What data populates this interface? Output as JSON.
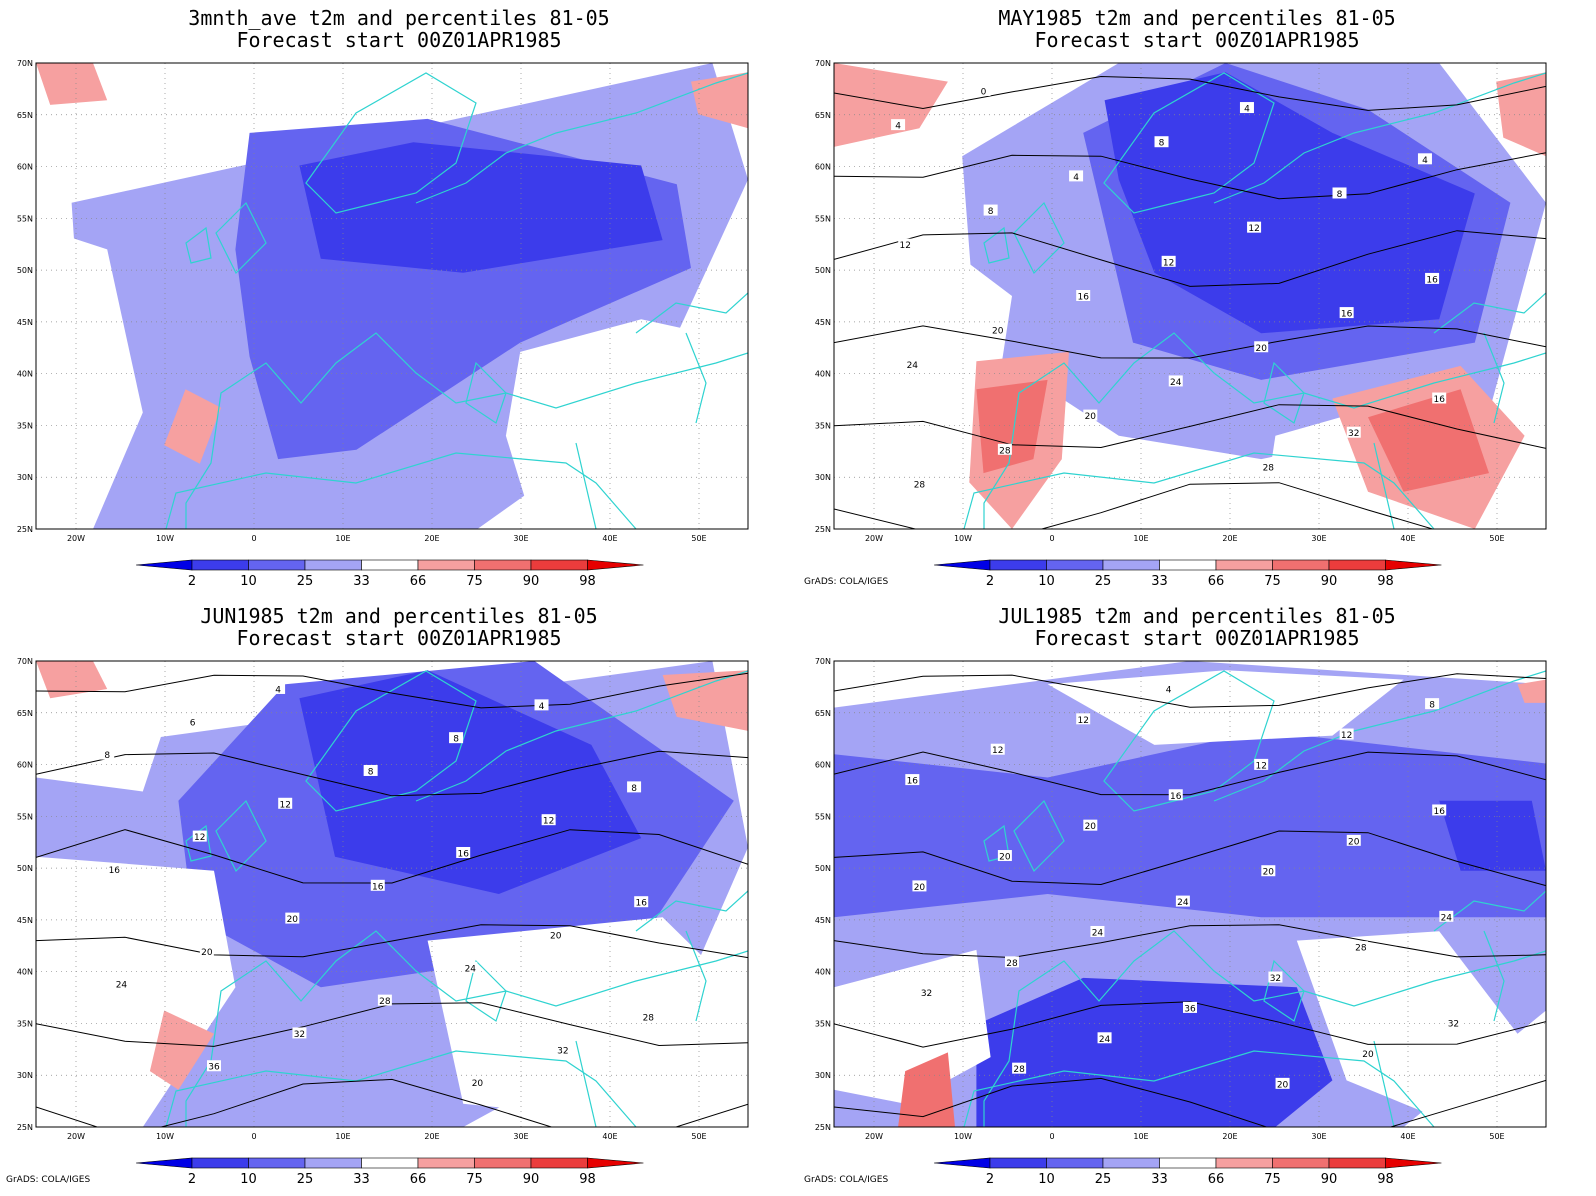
{
  "panels": [
    {
      "title_line1": "3mnth_ave t2m and percentiles 81-05",
      "title_line2": "Forecast start 00Z01APR1985",
      "credit": "",
      "contour_labels": [],
      "blobs": [
        {
          "c": "#a4a4f5",
          "pts": [
            [
              0.05,
              0.3
            ],
            [
              0.95,
              0.0
            ],
            [
              1.0,
              0.25
            ],
            [
              0.85,
              0.75
            ],
            [
              0.62,
              1.0
            ],
            [
              0.08,
              1.0
            ]
          ]
        },
        {
          "c": "#6464f0",
          "pts": [
            [
              0.28,
              0.4
            ],
            [
              0.3,
              0.15
            ],
            [
              0.55,
              0.12
            ],
            [
              0.9,
              0.26
            ],
            [
              0.92,
              0.44
            ],
            [
              0.68,
              0.6
            ],
            [
              0.45,
              0.83
            ],
            [
              0.34,
              0.85
            ],
            [
              0.3,
              0.63
            ]
          ]
        },
        {
          "c": "#3c3ceb",
          "pts": [
            [
              0.37,
              0.22
            ],
            [
              0.53,
              0.17
            ],
            [
              0.85,
              0.22
            ],
            [
              0.88,
              0.38
            ],
            [
              0.6,
              0.45
            ],
            [
              0.4,
              0.42
            ]
          ]
        },
        {
          "c": "#ffffff",
          "pts": [
            [
              0.0,
              0.35
            ],
            [
              0.1,
              0.4
            ],
            [
              0.15,
              0.75
            ],
            [
              0.08,
              1.0
            ],
            [
              0.0,
              1.0
            ]
          ]
        },
        {
          "c": "#ffffff",
          "pts": [
            [
              0.13,
              0.0
            ],
            [
              0.22,
              0.0
            ],
            [
              0.2,
              0.25
            ],
            [
              0.12,
              0.25
            ]
          ]
        },
        {
          "c": "#ffffff",
          "pts": [
            [
              0.68,
              0.62
            ],
            [
              0.85,
              0.55
            ],
            [
              1.0,
              0.6
            ],
            [
              1.0,
              1.0
            ],
            [
              0.7,
              1.0
            ],
            [
              0.66,
              0.8
            ]
          ]
        },
        {
          "c": "#f6a0a0",
          "pts": [
            [
              0.0,
              0.0
            ],
            [
              0.08,
              0.0
            ],
            [
              0.1,
              0.08
            ],
            [
              0.02,
              0.09
            ]
          ]
        },
        {
          "c": "#f6a0a0",
          "pts": [
            [
              0.92,
              0.04
            ],
            [
              1.0,
              0.02
            ],
            [
              1.0,
              0.14
            ],
            [
              0.93,
              0.11
            ]
          ]
        },
        {
          "c": "#f6a0a0",
          "pts": [
            [
              0.21,
              0.7
            ],
            [
              0.26,
              0.74
            ],
            [
              0.23,
              0.86
            ],
            [
              0.18,
              0.82
            ]
          ]
        }
      ]
    },
    {
      "title_line1": "MAY1985 t2m and percentiles 81-05",
      "title_line2": "Forecast start 00Z01APR1985",
      "credit": "GrADS: COLA/IGES",
      "contour_labels": [
        "0",
        "4",
        "4",
        "8",
        "4",
        "4",
        "8",
        "8",
        "12",
        "12",
        "12",
        "16",
        "16",
        "16",
        "20",
        "20",
        "24",
        "24",
        "16",
        "20",
        "32",
        "28",
        "28",
        "28"
      ],
      "blobs": [
        {
          "c": "#a4a4f5",
          "pts": [
            [
              0.18,
              0.2
            ],
            [
              0.4,
              0.0
            ],
            [
              0.85,
              0.0
            ],
            [
              1.0,
              0.3
            ],
            [
              0.92,
              0.75
            ],
            [
              0.6,
              0.85
            ],
            [
              0.4,
              0.8
            ],
            [
              0.2,
              0.6
            ]
          ]
        },
        {
          "c": "#6464f0",
          "pts": [
            [
              0.35,
              0.15
            ],
            [
              0.55,
              0.0
            ],
            [
              0.75,
              0.1
            ],
            [
              0.95,
              0.3
            ],
            [
              0.9,
              0.6
            ],
            [
              0.6,
              0.68
            ],
            [
              0.42,
              0.6
            ]
          ]
        },
        {
          "c": "#3c3ceb",
          "pts": [
            [
              0.38,
              0.08
            ],
            [
              0.55,
              0.02
            ],
            [
              0.7,
              0.15
            ],
            [
              0.9,
              0.28
            ],
            [
              0.85,
              0.55
            ],
            [
              0.6,
              0.58
            ],
            [
              0.45,
              0.45
            ],
            [
              0.4,
              0.25
            ]
          ]
        },
        {
          "c": "#ffffff",
          "pts": [
            [
              0.0,
              0.5
            ],
            [
              0.12,
              0.35
            ],
            [
              0.25,
              0.5
            ],
            [
              0.2,
              1.0
            ],
            [
              0.0,
              1.0
            ]
          ]
        },
        {
          "c": "#ffffff",
          "pts": [
            [
              0.62,
              0.8
            ],
            [
              0.85,
              0.7
            ],
            [
              1.0,
              0.8
            ],
            [
              1.0,
              1.0
            ],
            [
              0.6,
              1.0
            ]
          ]
        },
        {
          "c": "#f6a0a0",
          "pts": [
            [
              0.0,
              0.0
            ],
            [
              0.16,
              0.04
            ],
            [
              0.12,
              0.14
            ],
            [
              0.0,
              0.18
            ]
          ]
        },
        {
          "c": "#f6a0a0",
          "pts": [
            [
              0.2,
              0.64
            ],
            [
              0.33,
              0.62
            ],
            [
              0.32,
              0.85
            ],
            [
              0.25,
              1.0
            ],
            [
              0.19,
              0.9
            ]
          ]
        },
        {
          "c": "#f07070",
          "pts": [
            [
              0.2,
              0.7
            ],
            [
              0.3,
              0.68
            ],
            [
              0.28,
              0.85
            ],
            [
              0.21,
              0.88
            ]
          ]
        },
        {
          "c": "#f6a0a0",
          "pts": [
            [
              0.7,
              0.72
            ],
            [
              0.88,
              0.65
            ],
            [
              0.97,
              0.8
            ],
            [
              0.9,
              1.0
            ],
            [
              0.75,
              0.92
            ]
          ]
        },
        {
          "c": "#f07070",
          "pts": [
            [
              0.75,
              0.76
            ],
            [
              0.88,
              0.7
            ],
            [
              0.92,
              0.88
            ],
            [
              0.8,
              0.92
            ]
          ]
        },
        {
          "c": "#f6a0a0",
          "pts": [
            [
              0.93,
              0.04
            ],
            [
              1.0,
              0.02
            ],
            [
              1.0,
              0.2
            ],
            [
              0.94,
              0.16
            ]
          ]
        }
      ]
    },
    {
      "title_line1": "JUN1985 t2m and percentiles 81-05",
      "title_line2": "Forecast start 00Z01APR1985",
      "credit": "GrADS: COLA/IGES",
      "contour_labels": [
        "4",
        "4",
        "6",
        "8",
        "8",
        "8",
        "8",
        "12",
        "12",
        "12",
        "16",
        "16",
        "16",
        "16",
        "20",
        "20",
        "20",
        "24",
        "24",
        "28",
        "28",
        "32",
        "32",
        "36",
        "20"
      ],
      "blobs": [
        {
          "c": "#a4a4f5",
          "pts": [
            [
              0.0,
              0.2
            ],
            [
              0.95,
              0.0
            ],
            [
              1.0,
              0.4
            ],
            [
              0.9,
              0.75
            ],
            [
              0.6,
              1.0
            ],
            [
              0.0,
              1.0
            ]
          ]
        },
        {
          "c": "#6464f0",
          "pts": [
            [
              0.2,
              0.3
            ],
            [
              0.35,
              0.05
            ],
            [
              0.7,
              0.0
            ],
            [
              0.98,
              0.3
            ],
            [
              0.85,
              0.6
            ],
            [
              0.4,
              0.7
            ],
            [
              0.22,
              0.55
            ]
          ]
        },
        {
          "c": "#3c3ceb",
          "pts": [
            [
              0.37,
              0.08
            ],
            [
              0.55,
              0.02
            ],
            [
              0.78,
              0.18
            ],
            [
              0.85,
              0.38
            ],
            [
              0.65,
              0.5
            ],
            [
              0.42,
              0.42
            ]
          ]
        },
        {
          "c": "#ffffff",
          "pts": [
            [
              0.0,
              0.42
            ],
            [
              0.25,
              0.45
            ],
            [
              0.28,
              0.7
            ],
            [
              0.15,
              1.0
            ],
            [
              0.0,
              1.0
            ]
          ]
        },
        {
          "c": "#ffffff",
          "pts": [
            [
              0.55,
              0.6
            ],
            [
              0.88,
              0.55
            ],
            [
              0.98,
              0.7
            ],
            [
              0.92,
              1.0
            ],
            [
              0.6,
              0.95
            ]
          ]
        },
        {
          "c": "#ffffff",
          "pts": [
            [
              0.0,
              0.05
            ],
            [
              0.2,
              0.05
            ],
            [
              0.15,
              0.28
            ],
            [
              0.0,
              0.25
            ]
          ]
        },
        {
          "c": "#f6a0a0",
          "pts": [
            [
              0.0,
              0.0
            ],
            [
              0.08,
              0.0
            ],
            [
              0.1,
              0.06
            ],
            [
              0.02,
              0.08
            ]
          ]
        },
        {
          "c": "#f6a0a0",
          "pts": [
            [
              0.88,
              0.03
            ],
            [
              1.0,
              0.02
            ],
            [
              1.0,
              0.15
            ],
            [
              0.9,
              0.12
            ]
          ]
        },
        {
          "c": "#f6a0a0",
          "pts": [
            [
              0.18,
              0.75
            ],
            [
              0.25,
              0.8
            ],
            [
              0.2,
              0.92
            ],
            [
              0.16,
              0.88
            ]
          ]
        }
      ]
    },
    {
      "title_line1": "JUL1985 t2m and percentiles 81-05",
      "title_line2": "Forecast start 00Z01APR1985",
      "credit": "GrADS: COLA/IGES",
      "contour_labels": [
        "4",
        "8",
        "12",
        "12",
        "12",
        "12",
        "16",
        "16",
        "16",
        "20",
        "20",
        "20",
        "20",
        "20",
        "24",
        "24",
        "24",
        "28",
        "28",
        "32",
        "32",
        "36",
        "32",
        "24",
        "20",
        "28",
        "20"
      ],
      "blobs": [
        {
          "c": "#a4a4f5",
          "pts": [
            [
              0.0,
              0.1
            ],
            [
              0.5,
              0.0
            ],
            [
              1.0,
              0.05
            ],
            [
              1.0,
              0.75
            ],
            [
              0.8,
              1.0
            ],
            [
              0.0,
              1.0
            ]
          ]
        },
        {
          "c": "#6464f0",
          "pts": [
            [
              0.0,
              0.2
            ],
            [
              0.3,
              0.25
            ],
            [
              0.6,
              0.15
            ],
            [
              1.0,
              0.22
            ],
            [
              1.0,
              0.55
            ],
            [
              0.6,
              0.55
            ],
            [
              0.3,
              0.5
            ],
            [
              0.0,
              0.55
            ]
          ]
        },
        {
          "c": "#3c3ceb",
          "pts": [
            [
              0.2,
              0.78
            ],
            [
              0.35,
              0.68
            ],
            [
              0.65,
              0.7
            ],
            [
              0.7,
              0.9
            ],
            [
              0.62,
              1.0
            ],
            [
              0.2,
              1.0
            ]
          ]
        },
        {
          "c": "#3c3ceb",
          "pts": [
            [
              0.85,
              0.3
            ],
            [
              0.98,
              0.3
            ],
            [
              1.0,
              0.45
            ],
            [
              0.88,
              0.45
            ]
          ]
        },
        {
          "c": "#ffffff",
          "pts": [
            [
              0.3,
              0.05
            ],
            [
              0.55,
              0.02
            ],
            [
              0.8,
              0.04
            ],
            [
              0.7,
              0.16
            ],
            [
              0.45,
              0.18
            ]
          ]
        },
        {
          "c": "#ffffff",
          "pts": [
            [
              0.65,
              0.6
            ],
            [
              0.85,
              0.58
            ],
            [
              0.96,
              0.8
            ],
            [
              0.88,
              1.0
            ],
            [
              0.72,
              0.9
            ]
          ]
        },
        {
          "c": "#ffffff",
          "pts": [
            [
              0.0,
              0.7
            ],
            [
              0.2,
              0.62
            ],
            [
              0.22,
              0.85
            ],
            [
              0.1,
              0.95
            ],
            [
              0.0,
              0.92
            ]
          ]
        },
        {
          "c": "#f07070",
          "pts": [
            [
              0.1,
              0.88
            ],
            [
              0.16,
              0.84
            ],
            [
              0.17,
              1.0
            ],
            [
              0.09,
              1.0
            ]
          ]
        },
        {
          "c": "#f6a0a0",
          "pts": [
            [
              0.96,
              0.05
            ],
            [
              1.0,
              0.04
            ],
            [
              1.0,
              0.09
            ],
            [
              0.97,
              0.09
            ]
          ]
        }
      ]
    }
  ],
  "axes": {
    "x_ticks": [
      "20W",
      "10W",
      "0",
      "10E",
      "20E",
      "30E",
      "40E",
      "50E"
    ],
    "y_ticks": [
      "70N",
      "65N",
      "60N",
      "55N",
      "50N",
      "45N",
      "40N",
      "35N",
      "30N",
      "25N"
    ]
  },
  "legend": {
    "colors": [
      "#0000e6",
      "#3c3ceb",
      "#6464f0",
      "#a4a4f5",
      "#ffffff",
      "#f6a0a0",
      "#f07070",
      "#eb3c3c",
      "#e60000"
    ],
    "labels": [
      "2",
      "10",
      "25",
      "33",
      "66",
      "75",
      "90",
      "98"
    ]
  }
}
